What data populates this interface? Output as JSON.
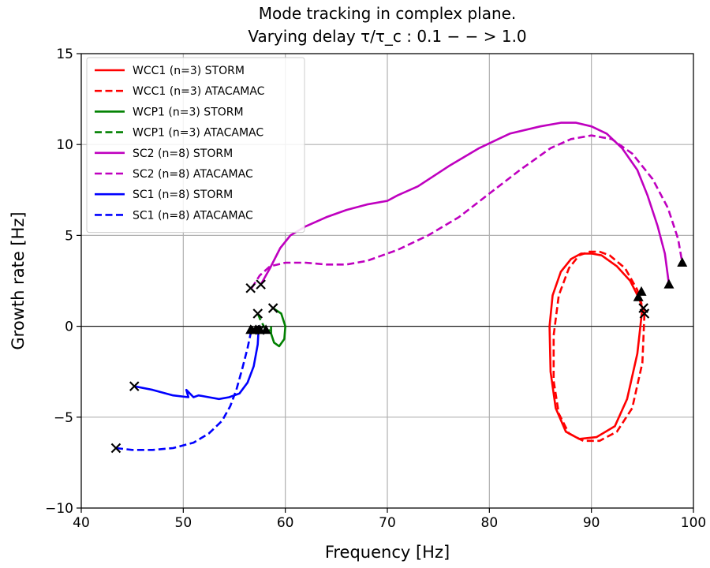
{
  "chart_data": {
    "type": "line",
    "title_line1": "Mode tracking in complex plane.",
    "title_line2": "Varying delay τ/τ_c : 0.1 − − > 1.0",
    "xlabel": "Frequency [Hz]",
    "ylabel": "Growth rate [Hz]",
    "xlim": [
      40,
      100
    ],
    "ylim": [
      -10,
      15
    ],
    "xticks": [
      40,
      50,
      60,
      70,
      80,
      90,
      100
    ],
    "yticks": [
      -10,
      -5,
      0,
      5,
      10,
      15
    ],
    "xtick_labels": [
      "40",
      "50",
      "60",
      "70",
      "80",
      "90",
      "100"
    ],
    "ytick_labels": [
      "−10",
      "−5",
      "0",
      "5",
      "10",
      "15"
    ],
    "grid": true,
    "legend_position": "top-left",
    "series": [
      {
        "name": "WCC1 (n=3) STORM",
        "color": "#ff0000",
        "dash": "solid",
        "x": [
          95.0,
          94.5,
          93.5,
          92.3,
          90.5,
          88.8,
          87.5,
          86.5,
          86.0,
          85.9,
          86.2,
          87.0,
          88.0,
          89.0,
          90.0,
          91.0,
          92.5,
          93.8,
          94.7,
          95.0
        ],
        "y": [
          1.0,
          -1.5,
          -4.0,
          -5.5,
          -6.1,
          -6.2,
          -5.8,
          -4.5,
          -2.5,
          0.0,
          1.7,
          3.0,
          3.7,
          4.0,
          4.0,
          3.9,
          3.3,
          2.5,
          1.5,
          1.0
        ]
      },
      {
        "name": "WCC1 (n=3) ATACAMAC",
        "color": "#ff0000",
        "dash": "dashed",
        "x": [
          95.2,
          95.0,
          94.0,
          92.5,
          90.8,
          89.2,
          87.8,
          86.8,
          86.3,
          86.3,
          86.8,
          87.8,
          88.8,
          89.8,
          90.8,
          91.8,
          93.3,
          94.5,
          95.2
        ],
        "y": [
          0.7,
          -2.0,
          -4.5,
          -5.8,
          -6.3,
          -6.3,
          -5.9,
          -4.8,
          -3.0,
          -0.5,
          1.7,
          3.2,
          3.9,
          4.1,
          4.1,
          3.9,
          3.2,
          2.0,
          0.7
        ]
      },
      {
        "name": "WCP1 (n=3) STORM",
        "color": "#008000",
        "dash": "solid",
        "x": [
          58.8,
          59.6,
          60.0,
          59.9,
          59.4,
          58.9,
          58.6,
          58.6
        ],
        "y": [
          1.0,
          0.7,
          0.0,
          -0.7,
          -1.1,
          -0.9,
          -0.4,
          0.0
        ]
      },
      {
        "name": "WCP1 (n=3) ATACAMAC",
        "color": "#008000",
        "dash": "dashed",
        "x": [
          57.3,
          57.6,
          57.9,
          58.2,
          58.5
        ],
        "y": [
          0.7,
          0.3,
          0.0,
          -0.3,
          -0.2
        ]
      },
      {
        "name": "SC2 (n=8) STORM",
        "color": "#bf00bf",
        "dash": "solid",
        "x": [
          57.6,
          58.5,
          59.5,
          60.5,
          62.0,
          64.0,
          66.0,
          68.0,
          70.0,
          71.0,
          73.0,
          76.0,
          79.0,
          82.0,
          85.0,
          87.0,
          88.5,
          90.0,
          91.5,
          93.0,
          94.5,
          95.5,
          96.5,
          97.2,
          97.6
        ],
        "y": [
          2.3,
          3.2,
          4.3,
          5.0,
          5.5,
          6.0,
          6.4,
          6.7,
          6.9,
          7.2,
          7.7,
          8.8,
          9.8,
          10.6,
          11.0,
          11.2,
          11.2,
          11.0,
          10.6,
          9.8,
          8.6,
          7.2,
          5.5,
          4.0,
          2.3
        ]
      },
      {
        "name": "SC2 (n=8) ATACAMAC",
        "color": "#bf00bf",
        "dash": "dashed",
        "x": [
          56.7,
          57.5,
          58.5,
          60.0,
          62.0,
          64.0,
          66.0,
          68.0,
          71.0,
          74.0,
          77.0,
          80.0,
          83.0,
          86.0,
          88.0,
          90.0,
          92.0,
          94.0,
          96.0,
          97.5,
          98.5,
          98.9
        ],
        "y": [
          2.1,
          2.8,
          3.3,
          3.5,
          3.5,
          3.4,
          3.4,
          3.6,
          4.2,
          5.0,
          6.0,
          7.3,
          8.6,
          9.8,
          10.3,
          10.5,
          10.3,
          9.5,
          8.1,
          6.5,
          4.8,
          3.5
        ]
      },
      {
        "name": "SC1 (n=8) STORM",
        "color": "#0000ff",
        "dash": "solid",
        "x": [
          45.2,
          47.0,
          49.0,
          50.5,
          50.3,
          51.0,
          51.5,
          52.5,
          53.5,
          54.5,
          55.5,
          56.3,
          56.9,
          57.3,
          57.4,
          57.4
        ],
        "y": [
          -3.3,
          -3.5,
          -3.8,
          -3.9,
          -3.5,
          -3.9,
          -3.8,
          -3.9,
          -4.0,
          -3.9,
          -3.7,
          -3.1,
          -2.2,
          -1.0,
          0.0,
          -0.3
        ]
      },
      {
        "name": "SC1 (n=8) ATACAMAC",
        "color": "#0000ff",
        "dash": "dashed",
        "x": [
          43.4,
          45.0,
          47.0,
          49.0,
          51.0,
          52.5,
          53.8,
          54.6,
          55.2,
          55.8,
          56.3,
          56.6,
          56.7
        ],
        "y": [
          -6.7,
          -6.8,
          -6.8,
          -6.7,
          -6.4,
          -5.9,
          -5.2,
          -4.4,
          -3.5,
          -2.3,
          -1.2,
          -0.4,
          -0.2
        ]
      }
    ],
    "start_markers": [
      {
        "x": 95.2,
        "y": 0.7
      },
      {
        "x": 95.1,
        "y": 1.0
      },
      {
        "x": 57.3,
        "y": 0.7
      },
      {
        "x": 58.8,
        "y": 1.0
      },
      {
        "x": 56.6,
        "y": 2.1
      },
      {
        "x": 57.6,
        "y": 2.3
      },
      {
        "x": 45.2,
        "y": -3.3
      },
      {
        "x": 43.4,
        "y": -6.7
      },
      {
        "x": 57.5,
        "y": -0.2
      },
      {
        "x": 57.0,
        "y": -0.2
      }
    ],
    "end_markers": [
      {
        "x": 94.6,
        "y": 1.6
      },
      {
        "x": 94.9,
        "y": 1.9
      },
      {
        "x": 97.6,
        "y": 2.3
      },
      {
        "x": 98.9,
        "y": 3.5
      },
      {
        "x": 56.6,
        "y": -0.2
      },
      {
        "x": 57.1,
        "y": -0.2
      },
      {
        "x": 57.5,
        "y": -0.2
      },
      {
        "x": 58.1,
        "y": -0.2
      }
    ]
  }
}
